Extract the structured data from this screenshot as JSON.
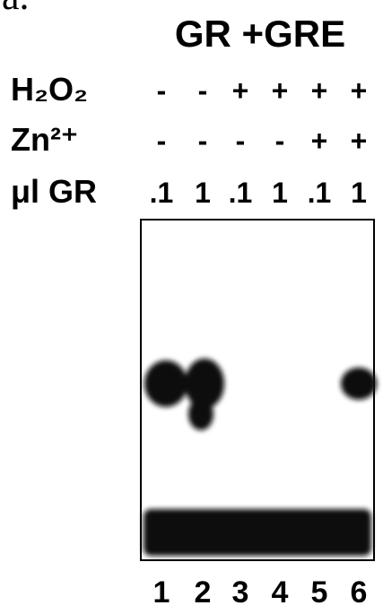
{
  "figure_label": "a.",
  "title": "GR +GRE",
  "rows": [
    {
      "label": "H₂O₂",
      "values": [
        "-",
        "-",
        "+",
        "+",
        "+",
        "+"
      ]
    },
    {
      "label": "Zn²⁺",
      "values": [
        "-",
        "-",
        "-",
        "-",
        "+",
        "+"
      ]
    },
    {
      "label": "μl GR",
      "values": [
        ".1",
        "1",
        ".1",
        "1",
        ".1",
        "1"
      ]
    }
  ],
  "lanes": [
    "1",
    "2",
    "3",
    "4",
    "5",
    "6"
  ]
}
